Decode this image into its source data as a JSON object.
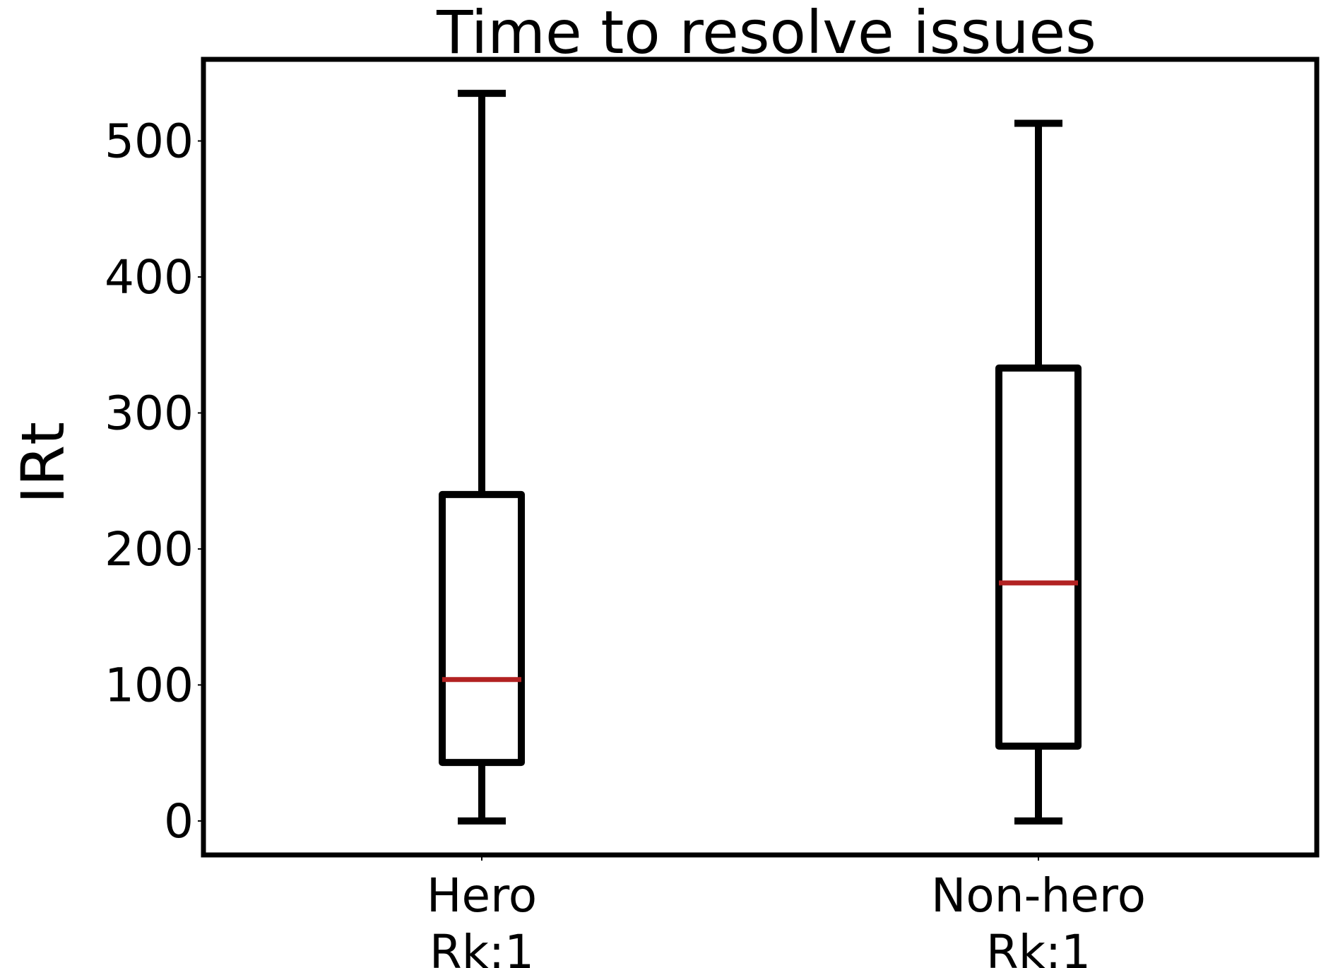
{
  "chart_data": {
    "type": "box",
    "title": "Time to resolve issues",
    "xlabel": "",
    "ylabel": "IRt",
    "ylim": [
      -25,
      560
    ],
    "yticks": [
      0,
      100,
      200,
      300,
      400,
      500
    ],
    "grid": false,
    "categories": [
      "Hero\nRk:1",
      "Non-hero\nRk:1"
    ],
    "series": [
      {
        "whisker_low": 0,
        "q1": 43,
        "median": 104,
        "q3": 240,
        "whisker_high": 535
      },
      {
        "whisker_low": 0,
        "q1": 55,
        "median": 175,
        "q3": 333,
        "whisker_high": 513
      }
    ],
    "colors": {
      "box": "#000000",
      "median": "#b22222",
      "frame": "#000000"
    }
  }
}
